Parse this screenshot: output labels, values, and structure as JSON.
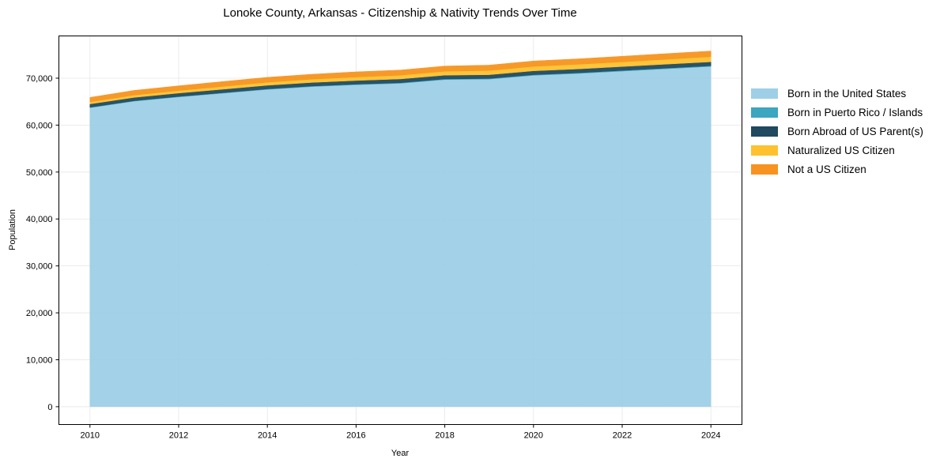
{
  "chart_data": {
    "type": "area",
    "stacked": true,
    "title": "Lonoke County, Arkansas - Citizenship & Nativity Trends Over Time",
    "xlabel": "Year",
    "ylabel": "Population",
    "x": [
      2010,
      2011,
      2012,
      2013,
      2014,
      2015,
      2016,
      2017,
      2018,
      2019,
      2020,
      2021,
      2022,
      2023,
      2024
    ],
    "xticks": [
      2010,
      2012,
      2014,
      2016,
      2018,
      2020,
      2022,
      2024
    ],
    "yticks": [
      0,
      10000,
      20000,
      30000,
      40000,
      50000,
      60000,
      70000
    ],
    "ytick_labels": [
      "0",
      "10,000",
      "20,000",
      "30,000",
      "40,000",
      "50,000",
      "60,000",
      "70,000"
    ],
    "xlim": [
      2009.3,
      2024.7
    ],
    "ylim": [
      -3800,
      79000
    ],
    "grid": true,
    "legend_position": "right outside",
    "series": [
      {
        "name": "Born in the United States",
        "color": "#9ecfe6",
        "values": [
          63700,
          65100,
          66000,
          66800,
          67600,
          68200,
          68600,
          68900,
          69700,
          69800,
          70600,
          71000,
          71500,
          72000,
          72500
        ]
      },
      {
        "name": "Born in Puerto Rico / Islands",
        "color": "#3aa6c0",
        "values": [
          100,
          100,
          100,
          100,
          120,
          120,
          120,
          130,
          130,
          130,
          140,
          140,
          150,
          150,
          150
        ]
      },
      {
        "name": "Born Abroad of US Parent(s)",
        "color": "#1f4a5f",
        "values": [
          700,
          700,
          720,
          740,
          760,
          760,
          780,
          800,
          800,
          800,
          820,
          820,
          820,
          830,
          830
        ]
      },
      {
        "name": "Naturalized US Citizen",
        "color": "#ffc12e",
        "values": [
          450,
          500,
          550,
          600,
          650,
          700,
          750,
          800,
          850,
          900,
          950,
          1000,
          1000,
          1050,
          1100
        ]
      },
      {
        "name": "Not a US Citizen",
        "color": "#f7931e",
        "values": [
          950,
          1000,
          1000,
          1050,
          1050,
          1050,
          1100,
          1100,
          1100,
          1150,
          1150,
          1150,
          1200,
          1200,
          1200
        ]
      }
    ]
  }
}
